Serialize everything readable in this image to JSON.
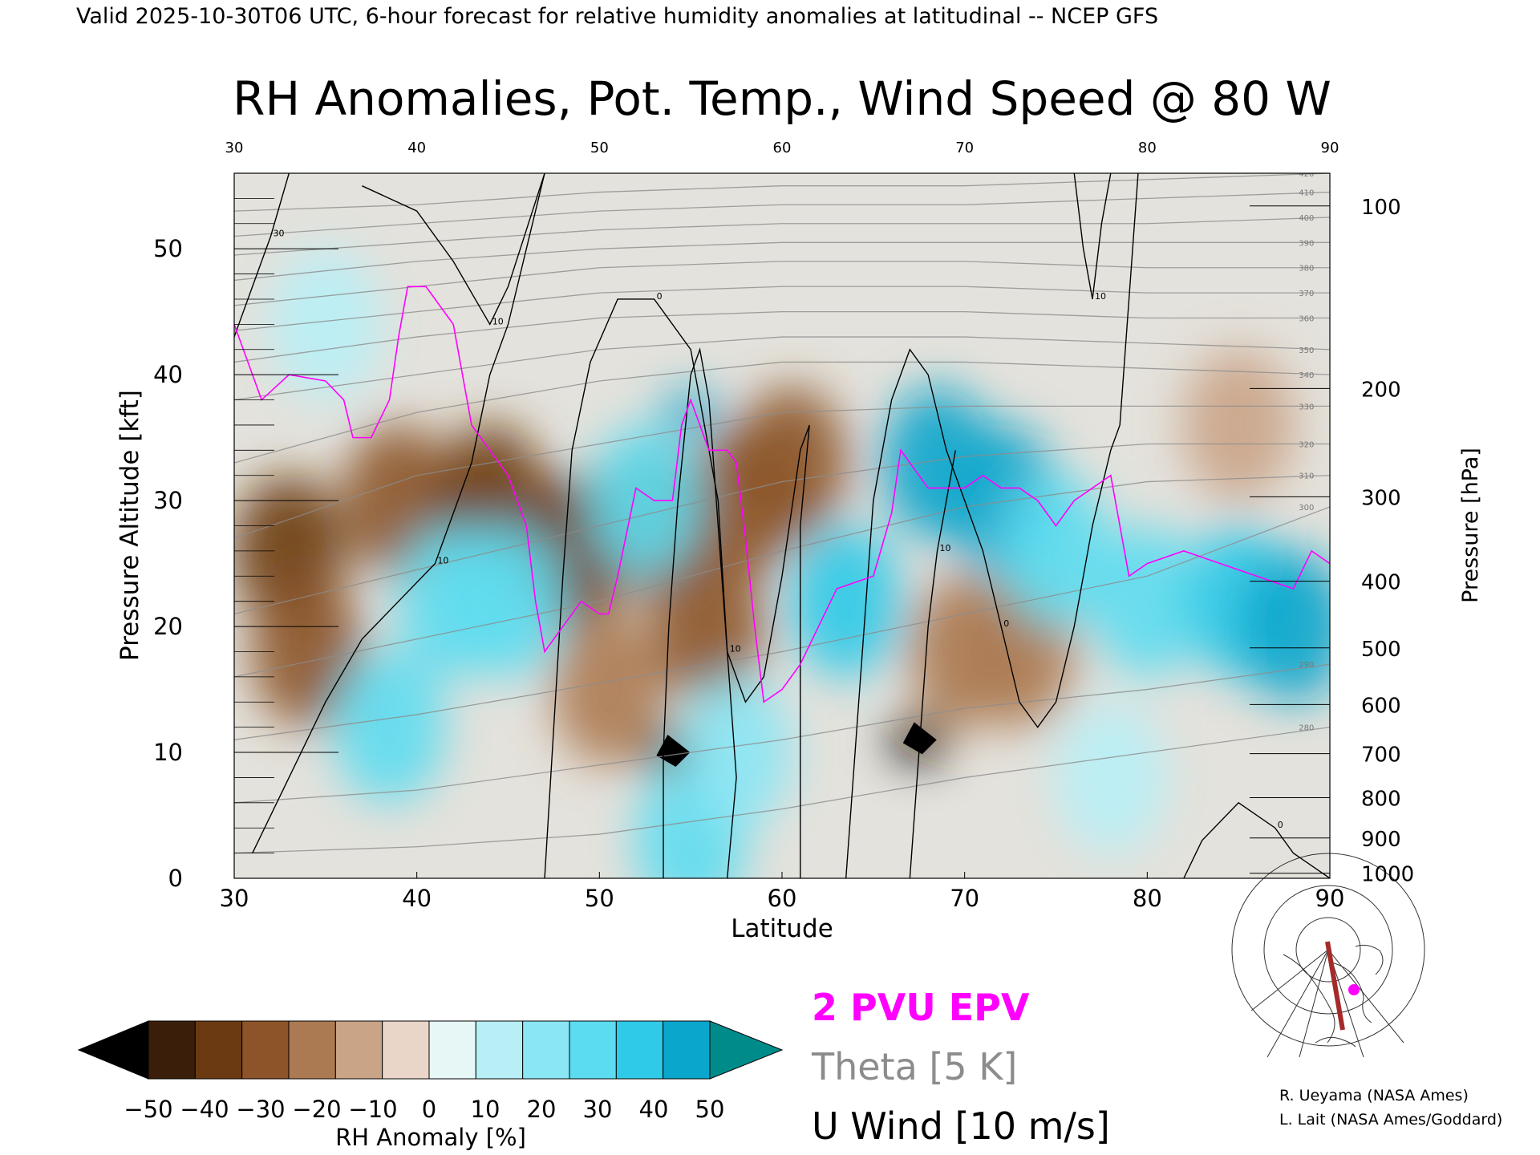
{
  "header": "Valid 2025-10-30T06 UTC, 6-hour forecast for relative humidity anomalies at latitudinal -- NCEP GFS",
  "colors": {
    "anom_neg_strong": "#000000",
    "anom_neg": "#6b3a12",
    "anom_neutral": "#e8e2da",
    "anom_pos": "#3fd3e8",
    "anom_pos_strong": "#008b8b",
    "pv": "#ff00ff",
    "theta": "#8c8c8c",
    "wind": "#000000",
    "background_upper": "#e4e2dc"
  },
  "chart_data": {
    "type": "heatmap",
    "title": "RH Anomalies, Pot. Temp., Wind Speed @ 80 W",
    "xlabel": "Latitude",
    "ylabel_left": "Pressure Altitude [kft]",
    "ylabel_right": "Pressure [hPa]",
    "xlim": [
      30,
      90
    ],
    "ylim": [
      0,
      56
    ],
    "x_ticks": [
      "30",
      "40",
      "50",
      "60",
      "70",
      "80",
      "90"
    ],
    "y_ticks_left": [
      {
        "label": "0",
        "kft": 0
      },
      {
        "label": "10",
        "kft": 10
      },
      {
        "label": "20",
        "kft": 20
      },
      {
        "label": "30",
        "kft": 30
      },
      {
        "label": "40",
        "kft": 40
      },
      {
        "label": "50",
        "kft": 50
      }
    ],
    "y_ticks_right": [
      {
        "label": "100",
        "kft": 53.4
      },
      {
        "label": "200",
        "kft": 38.9
      },
      {
        "label": "300",
        "kft": 30.3
      },
      {
        "label": "400",
        "kft": 23.6
      },
      {
        "label": "500",
        "kft": 18.3
      },
      {
        "label": "600",
        "kft": 13.8
      },
      {
        "label": "700",
        "kft": 9.9
      },
      {
        "label": "800",
        "kft": 6.4
      },
      {
        "label": "900",
        "kft": 3.2
      },
      {
        "label": "1000",
        "kft": 0.4
      }
    ],
    "colorbar": {
      "label": "RH Anomaly [%]",
      "tick_labels": [
        "−50",
        "−40",
        "−30",
        "−20",
        "−10",
        "0",
        "10",
        "20",
        "30",
        "40",
        "50"
      ],
      "colors": [
        "#000000",
        "#3b1e09",
        "#6b3a12",
        "#8c5428",
        "#ac7a52",
        "#caa487",
        "#ead6c8",
        "#e6f7f6",
        "#b8eff6",
        "#8ae6f4",
        "#5cdcf0",
        "#2fcae8",
        "#0aa6cc",
        "#008b8b"
      ]
    },
    "legend": [
      {
        "label": "2 PVU EPV",
        "color": "#ff00ff"
      },
      {
        "label": "Theta [5 K]",
        "color": "#8c8c8c"
      },
      {
        "label": "U Wind [10 m/s]",
        "color": "#000000"
      }
    ],
    "anomaly_field": [
      {
        "lat": 33,
        "kft": 26,
        "value": -35
      },
      {
        "lat": 34,
        "kft": 18,
        "value": -30
      },
      {
        "lat": 39,
        "kft": 30,
        "value": -30
      },
      {
        "lat": 44,
        "kft": 30,
        "value": -35
      },
      {
        "lat": 48.5,
        "kft": 26,
        "value": -35
      },
      {
        "lat": 50.5,
        "kft": 15,
        "value": -20
      },
      {
        "lat": 53,
        "kft": 28,
        "value": -30
      },
      {
        "lat": 54,
        "kft": 10,
        "value": -50
      },
      {
        "lat": 56,
        "kft": 20,
        "value": -30
      },
      {
        "lat": 58,
        "kft": 30,
        "value": -25
      },
      {
        "lat": 60.5,
        "kft": 33,
        "value": -25
      },
      {
        "lat": 67.5,
        "kft": 11,
        "value": -50
      },
      {
        "lat": 70,
        "kft": 18,
        "value": -20
      },
      {
        "lat": 73,
        "kft": 18,
        "value": -20
      },
      {
        "lat": 85,
        "kft": 36,
        "value": -10
      },
      {
        "lat": 35,
        "kft": 44,
        "value": 10
      },
      {
        "lat": 38.5,
        "kft": 12,
        "value": 25
      },
      {
        "lat": 42,
        "kft": 22,
        "value": 30
      },
      {
        "lat": 45,
        "kft": 22,
        "value": 30
      },
      {
        "lat": 52.5,
        "kft": 30,
        "value": 25
      },
      {
        "lat": 55,
        "kft": 37,
        "value": 45
      },
      {
        "lat": 55,
        "kft": 3,
        "value": 25
      },
      {
        "lat": 57.5,
        "kft": 10,
        "value": 20
      },
      {
        "lat": 63.5,
        "kft": 22,
        "value": 35
      },
      {
        "lat": 68.5,
        "kft": 33,
        "value": 40
      },
      {
        "lat": 72,
        "kft": 30,
        "value": 40
      },
      {
        "lat": 75,
        "kft": 26,
        "value": 30
      },
      {
        "lat": 80,
        "kft": 22,
        "value": 30
      },
      {
        "lat": 85,
        "kft": 22,
        "value": 35
      },
      {
        "lat": 88,
        "kft": 20,
        "value": 40
      },
      {
        "lat": 78,
        "kft": 8,
        "value": 15
      }
    ],
    "theta_contours": [
      {
        "label": "280",
        "kft": [
          2,
          2.5,
          3.5,
          5.5,
          8,
          10,
          12
        ]
      },
      {
        "label": "290",
        "kft": [
          6,
          7,
          9,
          11,
          13.5,
          15,
          17
        ]
      },
      {
        "label": "300",
        "kft": [
          11,
          13,
          15.5,
          18,
          21,
          24,
          29.5
        ]
      },
      {
        "label": "310",
        "kft": [
          16,
          19,
          22,
          26,
          29.5,
          31.5,
          32
        ]
      },
      {
        "label": "320",
        "kft": [
          21,
          24.5,
          28,
          31.5,
          33.5,
          34.5,
          34.5
        ]
      },
      {
        "label": "330",
        "kft": [
          27,
          32,
          34.5,
          37,
          37.5,
          37.5,
          37.5
        ]
      },
      {
        "label": "340",
        "kft": [
          33,
          37,
          39.5,
          41,
          41,
          40.5,
          40
        ]
      },
      {
        "label": "350",
        "kft": [
          38,
          40,
          42,
          43,
          43,
          42.5,
          42
        ]
      },
      {
        "label": "360",
        "kft": [
          41,
          43,
          44.5,
          45,
          45,
          44.5,
          44.5
        ]
      },
      {
        "label": "370",
        "kft": [
          43.5,
          45,
          46.5,
          47,
          47,
          46.5,
          46.5
        ]
      },
      {
        "label": "380",
        "kft": [
          45.5,
          47,
          48.5,
          49,
          49,
          48.5,
          48.5
        ]
      },
      {
        "label": "390",
        "kft": [
          47.5,
          49,
          50,
          50.5,
          50.5,
          50.5,
          50.5
        ]
      },
      {
        "label": "400",
        "kft": [
          49.5,
          50.5,
          51.5,
          52,
          52,
          52,
          52.5
        ]
      },
      {
        "label": "410",
        "kft": [
          51,
          52,
          53,
          53.5,
          53.5,
          54,
          54.5
        ]
      },
      {
        "label": "420",
        "kft": [
          53,
          53.5,
          54.5,
          55,
          55,
          55.5,
          56
        ]
      }
    ],
    "theta_x": [
      30,
      40,
      50,
      60,
      70,
      80,
      90
    ],
    "wind_contours": [
      {
        "label": "10",
        "points": [
          [
            31,
            2
          ],
          [
            33,
            8
          ],
          [
            35,
            14
          ],
          [
            37,
            19
          ],
          [
            39,
            22
          ],
          [
            41,
            25
          ],
          [
            43,
            33
          ],
          [
            44,
            40
          ],
          [
            45,
            44
          ],
          [
            47,
            56
          ]
        ]
      },
      {
        "label": "30",
        "points": [
          [
            30,
            43
          ],
          [
            31,
            47
          ],
          [
            32,
            51
          ],
          [
            33,
            56
          ]
        ]
      },
      {
        "label": "10",
        "points": [
          [
            37,
            55
          ],
          [
            40,
            53
          ],
          [
            42,
            49
          ],
          [
            44,
            44
          ],
          [
            45,
            47
          ],
          [
            47,
            56
          ]
        ]
      },
      {
        "label": "0",
        "points": [
          [
            47,
            0
          ],
          [
            47.5,
            12
          ],
          [
            48,
            24
          ],
          [
            48.5,
            34
          ],
          [
            49.5,
            41
          ],
          [
            51,
            46
          ],
          [
            53,
            46
          ],
          [
            55,
            42
          ],
          [
            56.5,
            30
          ],
          [
            57,
            18
          ],
          [
            57.5,
            8
          ],
          [
            57,
            0
          ]
        ]
      },
      {
        "label": "10",
        "points": [
          [
            53.5,
            0
          ],
          [
            53.5,
            10
          ],
          [
            53.8,
            20
          ],
          [
            54.3,
            30
          ],
          [
            55,
            40
          ],
          [
            55.5,
            42
          ],
          [
            56,
            38
          ],
          [
            56.5,
            28
          ],
          [
            57,
            18
          ],
          [
            58,
            14
          ],
          [
            59,
            16
          ],
          [
            60,
            24
          ],
          [
            61,
            34
          ],
          [
            61.5,
            36
          ],
          [
            61,
            28
          ],
          [
            61,
            16
          ],
          [
            61,
            0
          ]
        ]
      },
      {
        "label": "0",
        "points": [
          [
            63.5,
            0
          ],
          [
            64,
            10
          ],
          [
            64.5,
            20
          ],
          [
            65,
            30
          ],
          [
            66,
            38
          ],
          [
            67,
            42
          ],
          [
            68,
            40
          ],
          [
            69,
            34
          ],
          [
            70,
            30
          ],
          [
            71,
            26
          ],
          [
            72,
            20
          ],
          [
            73,
            14
          ],
          [
            74,
            12
          ],
          [
            75,
            14
          ],
          [
            76,
            20
          ],
          [
            77,
            28
          ],
          [
            78,
            34
          ],
          [
            78.5,
            36
          ],
          [
            79,
            46
          ],
          [
            79.5,
            56
          ]
        ]
      },
      {
        "label": "10",
        "points": [
          [
            76,
            56
          ],
          [
            76.5,
            50
          ],
          [
            77,
            46
          ],
          [
            77.5,
            52
          ],
          [
            78,
            56
          ]
        ]
      },
      {
        "label": "10",
        "points": [
          [
            67,
            0
          ],
          [
            67.5,
            10
          ],
          [
            68,
            20
          ],
          [
            68.5,
            26
          ],
          [
            69,
            30
          ],
          [
            69.5,
            34
          ]
        ]
      },
      {
        "label": "0",
        "points": [
          [
            82,
            0
          ],
          [
            83,
            3
          ],
          [
            85,
            6
          ],
          [
            87,
            4
          ],
          [
            88,
            2
          ],
          [
            90,
            0
          ]
        ]
      }
    ],
    "pv_contours": [
      {
        "points": [
          [
            30,
            44
          ],
          [
            31.5,
            38
          ],
          [
            33,
            40
          ],
          [
            35,
            39.5
          ],
          [
            36,
            38
          ],
          [
            36.5,
            35
          ],
          [
            37.5,
            35
          ],
          [
            38.5,
            38
          ],
          [
            39,
            43
          ],
          [
            39.5,
            47
          ],
          [
            40.5,
            47
          ],
          [
            42,
            44
          ],
          [
            42.5,
            40
          ],
          [
            43,
            36
          ],
          [
            44,
            34
          ],
          [
            45,
            32
          ],
          [
            46,
            28
          ],
          [
            46.5,
            22
          ],
          [
            47,
            18
          ],
          [
            48,
            20
          ],
          [
            49,
            22
          ],
          [
            50,
            21
          ],
          [
            50.5,
            21
          ],
          [
            51,
            24
          ],
          [
            52,
            31
          ],
          [
            53,
            30
          ],
          [
            54,
            30
          ],
          [
            54.5,
            36
          ],
          [
            55,
            38
          ],
          [
            56,
            34
          ],
          [
            57,
            34
          ],
          [
            57.5,
            33
          ],
          [
            58,
            27
          ],
          [
            58.5,
            20
          ],
          [
            59,
            14
          ],
          [
            60,
            15
          ],
          [
            61,
            17
          ],
          [
            62,
            20
          ],
          [
            63,
            23
          ],
          [
            65,
            24
          ],
          [
            66,
            29
          ],
          [
            66.5,
            34
          ],
          [
            67,
            33
          ],
          [
            68,
            31
          ],
          [
            70,
            31
          ],
          [
            71,
            32
          ],
          [
            72,
            31
          ],
          [
            73,
            31
          ],
          [
            74,
            30
          ],
          [
            75,
            28
          ],
          [
            76,
            30
          ],
          [
            77,
            31
          ],
          [
            78,
            32
          ],
          [
            79,
            24
          ],
          [
            80,
            25
          ],
          [
            82,
            26
          ],
          [
            84,
            25
          ],
          [
            86,
            24
          ],
          [
            88,
            23
          ],
          [
            89,
            26
          ],
          [
            90,
            25
          ]
        ]
      }
    ]
  },
  "credits": [
    "R. Ueyama (NASA Ames)",
    "L. Lait (NASA Ames/Goddard)"
  ]
}
